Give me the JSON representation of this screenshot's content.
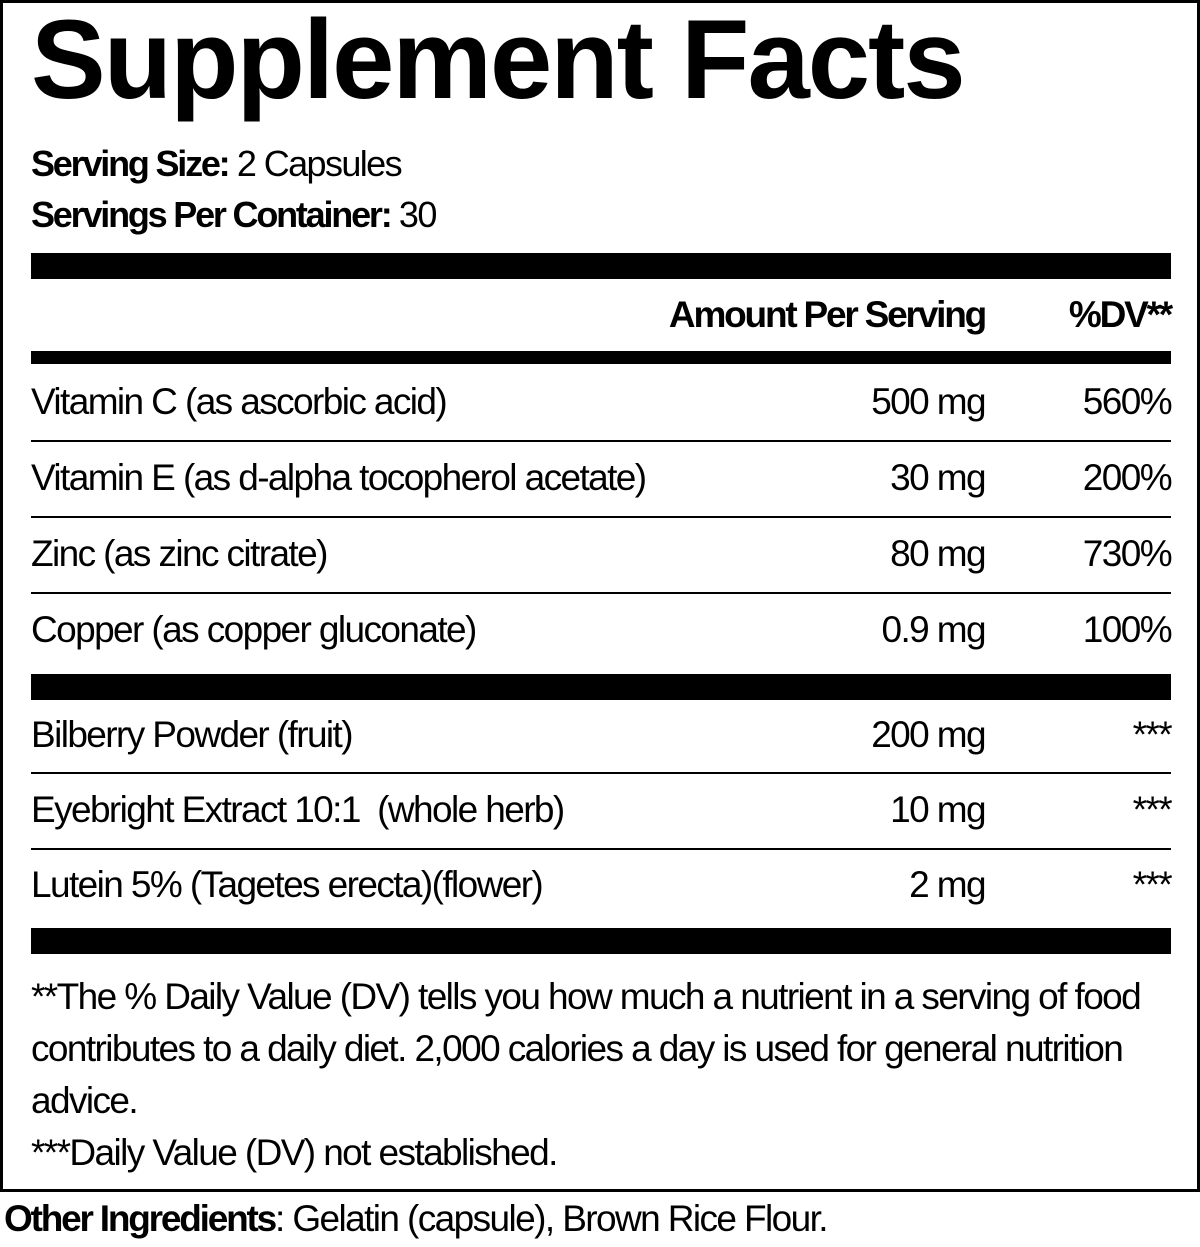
{
  "title": "Supplement Facts",
  "serving_size": {
    "label": "Serving Size:",
    "value": "2 Capsules"
  },
  "servings_per_container": {
    "label": "Servings Per Container:",
    "value": "30"
  },
  "header": {
    "amount": "Amount Per Serving",
    "dv": "%DV**"
  },
  "nutrients": [
    {
      "name": "Vitamin C (as ascorbic acid)",
      "amount": "500 mg",
      "dv": "560%"
    },
    {
      "name": "Vitamin E (as d-alpha tocopherol acetate)",
      "amount": "30 mg",
      "dv": "200%"
    },
    {
      "name": "Zinc (as zinc citrate)",
      "amount": "80 mg",
      "dv": "730%"
    },
    {
      "name": "Copper (as copper gluconate)",
      "amount": "0.9 mg",
      "dv": "100%"
    }
  ],
  "botanicals": [
    {
      "name": "Bilberry Powder (fruit)",
      "amount": "200 mg",
      "dv": "***"
    },
    {
      "name": "Eyebright Extract 10:1  (whole herb)",
      "amount": "10 mg",
      "dv": "***"
    },
    {
      "name": "Lutein 5% (Tagetes erecta)(flower)",
      "amount": "2 mg",
      "dv": "***"
    }
  ],
  "footnotes": {
    "dv_note": "**The % Daily Value (DV) tells you how much a nutrient in a serving of food contributes to a daily diet. 2,000 calories a day is used for general nutrition advice.",
    "not_established": "***Daily Value (DV) not established."
  },
  "other_ingredients": {
    "label": "Other Ingredients",
    "value": ": Gelatin (capsule), Brown Rice Flour."
  }
}
